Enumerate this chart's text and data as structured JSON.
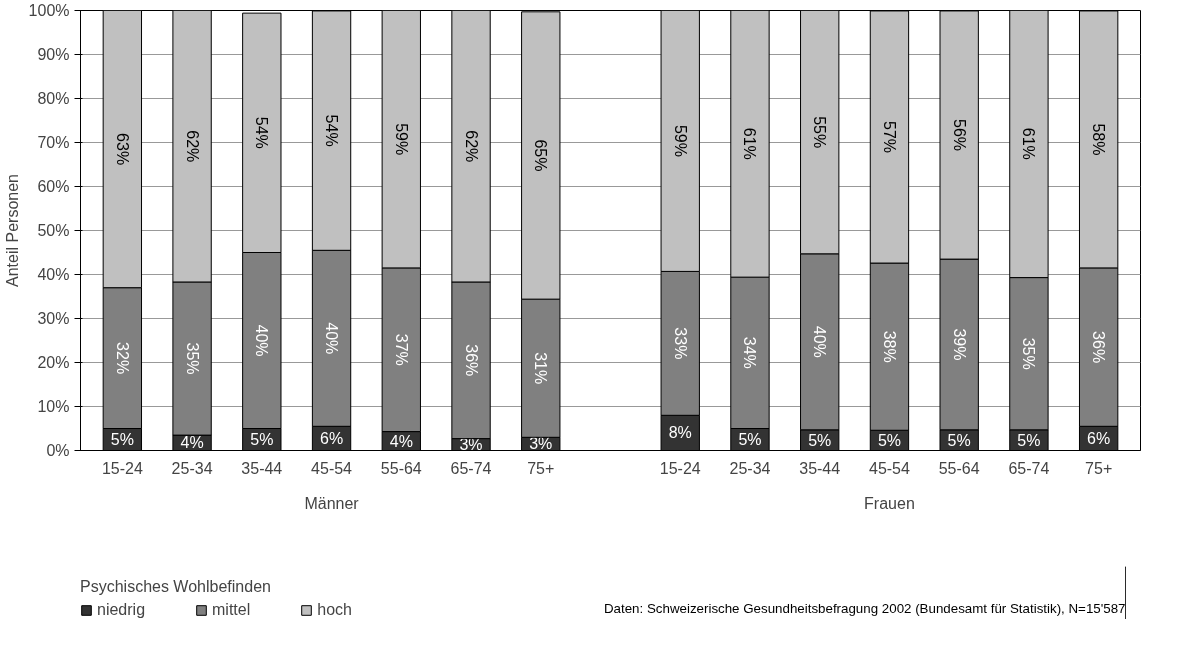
{
  "chart_data": {
    "type": "bar",
    "stacked": true,
    "ylabel": "Anteil Personen",
    "legend_title": "Psychisches Wohlbefinden",
    "legend": "bottom",
    "grid": "y",
    "categories": [
      "15-24",
      "25-34",
      "35-44",
      "45-54",
      "55-64",
      "65-74",
      "75+",
      null,
      "15-24",
      "25-34",
      "35-44",
      "45-54",
      "55-64",
      "65-74",
      "75+"
    ],
    "ylim": [
      0,
      100
    ],
    "yticks": [
      {
        "value": 0,
        "label": "0%"
      },
      {
        "value": 10,
        "label": "10%"
      },
      {
        "value": 20,
        "label": "20%"
      },
      {
        "value": 30,
        "label": "30%"
      },
      {
        "value": 40,
        "label": "40%"
      },
      {
        "value": 50,
        "label": "50%"
      },
      {
        "value": 60,
        "label": "60%"
      },
      {
        "value": 70,
        "label": "70%"
      },
      {
        "value": 80,
        "label": "80%"
      },
      {
        "value": 90,
        "label": "90%"
      },
      {
        "value": 100,
        "label": "100%"
      }
    ],
    "series": [
      {
        "name": "niedrig",
        "color": "#333333",
        "values": [
          5,
          3.5,
          5,
          5.5,
          4.3,
          2.7,
          3,
          null,
          8,
          5,
          4.7,
          4.6,
          4.7,
          4.7,
          5.5
        ],
        "value_labels": [
          "5%",
          "4%",
          "5%",
          "6%",
          "4%",
          "3%",
          "3%",
          null,
          "8%",
          "5%",
          "5%",
          "5%",
          "5%",
          "5%",
          "6%"
        ]
      },
      {
        "name": "mittel",
        "color": "#808080",
        "values": [
          32,
          34.8,
          40,
          40,
          37.2,
          35.6,
          31.4,
          null,
          32.7,
          34.4,
          40,
          38,
          38.8,
          34.6,
          36
        ],
        "value_labels": [
          "32%",
          "35%",
          "40%",
          "40%",
          "37%",
          "36%",
          "31%",
          null,
          "33%",
          "34%",
          "40%",
          "38%",
          "39%",
          "35%",
          "36%"
        ]
      },
      {
        "name": "hoch",
        "color": "#c0c0c0",
        "values": [
          63,
          61.7,
          54.4,
          54.4,
          58.5,
          61.7,
          65.3,
          null,
          59.3,
          60.6,
          55.3,
          57.3,
          56.4,
          60.8,
          58.4
        ],
        "value_labels": [
          "63%",
          "62%",
          "54%",
          "54%",
          "59%",
          "62%",
          "65%",
          null,
          "59%",
          "61%",
          "55%",
          "57%",
          "56%",
          "61%",
          "58%"
        ]
      }
    ],
    "annotations": [
      "Männer",
      "Frauen",
      "Daten: Schweizerische Gesundheitsbefragung 2002 (Bundesamt für Statistik), N=15'587"
    ]
  }
}
